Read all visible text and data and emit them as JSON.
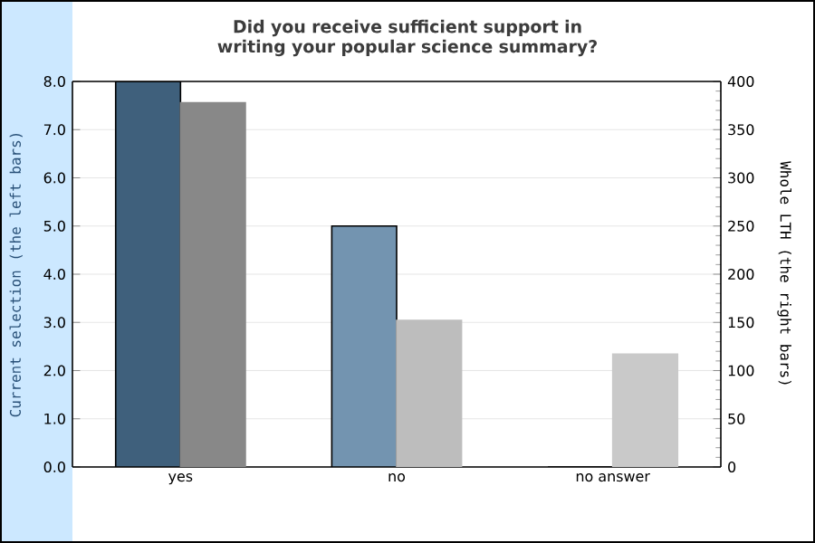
{
  "chart_data": {
    "type": "bar",
    "title": "Did you receive sufficient support in writing your popular science summary?",
    "categories": [
      "yes",
      "no",
      "no answer"
    ],
    "ylabel": "Current selection (the left bars)",
    "y2label": "Whole LTH (the right bars)",
    "ylim": [
      0,
      8
    ],
    "yticks": [
      {
        "value": 0,
        "label": "0.0"
      },
      {
        "value": 1,
        "label": "1.0"
      },
      {
        "value": 2,
        "label": "2.0"
      },
      {
        "value": 3,
        "label": "3.0"
      },
      {
        "value": 4,
        "label": "4.0"
      },
      {
        "value": 5,
        "label": "5.0"
      },
      {
        "value": 6,
        "label": "6.0"
      },
      {
        "value": 7,
        "label": "7.0"
      },
      {
        "value": 8,
        "label": "8.0"
      }
    ],
    "y2lim": [
      0,
      400
    ],
    "y2ticks": [
      0,
      50,
      100,
      150,
      200,
      250,
      300,
      350,
      400
    ],
    "grid": "y",
    "series": [
      {
        "colors": [
          "#3f607c",
          "#7394b0",
          "#7394b0"
        ],
        "values": [
          8,
          5,
          0
        ]
      },
      {
        "axis": "y2",
        "colors": [
          "#888888",
          "#bdbdbd",
          "#c9c9c9"
        ],
        "values": [
          378,
          152,
          117
        ]
      }
    ]
  }
}
